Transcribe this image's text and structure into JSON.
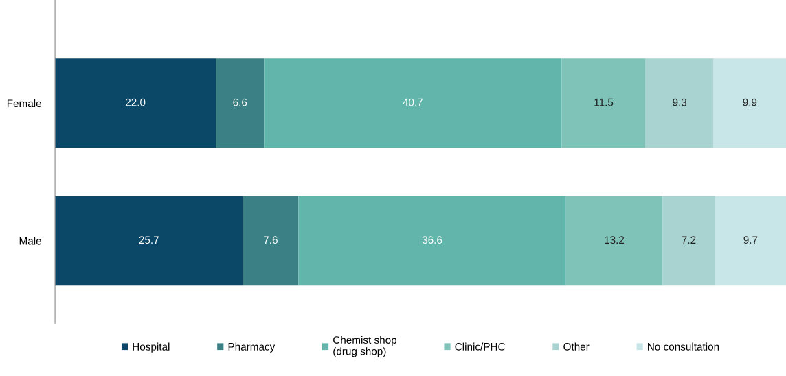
{
  "chart_data": {
    "type": "bar",
    "orientation": "horizontal",
    "stacked": true,
    "legend": "bottom",
    "grid": false,
    "tick_labels": "y",
    "categories": [
      "Female",
      "Male"
    ],
    "series": [
      {
        "name": "Hospital",
        "color": "#0b4868",
        "values": [
          22.0,
          25.7
        ],
        "value_labels": [
          "22.0",
          "25.7"
        ]
      },
      {
        "name": "Pharmacy",
        "color": "#3a8085",
        "values": [
          6.6,
          7.6
        ],
        "value_labels": [
          "6.6",
          "7.6"
        ]
      },
      {
        "name": "Chemist shop\n(drug shop)",
        "color": "#61b5ab",
        "values": [
          40.7,
          36.6
        ],
        "value_labels": [
          "40.7",
          "36.6"
        ]
      },
      {
        "name": "Clinic/PHC",
        "color": "#7fc3b8",
        "values": [
          11.5,
          13.2
        ],
        "value_labels": [
          "11.5",
          "13.2"
        ]
      },
      {
        "name": "Other",
        "color": "#a8d3d1",
        "values": [
          9.3,
          7.2
        ],
        "value_labels": [
          "9.3",
          "7.2"
        ]
      },
      {
        "name": "No consultation",
        "color": "#c8e6e8",
        "values": [
          9.9,
          9.7
        ],
        "value_labels": [
          "9.9",
          "9.7"
        ]
      }
    ]
  }
}
